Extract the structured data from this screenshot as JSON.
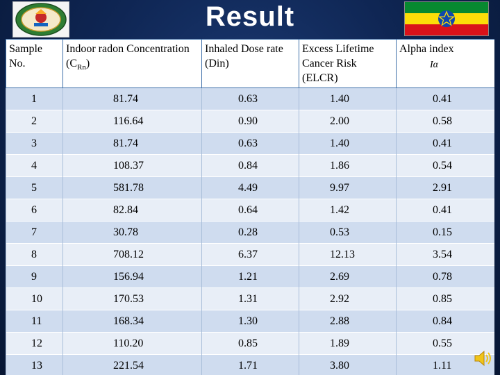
{
  "slide": {
    "title": "Result"
  },
  "table": {
    "headers": [
      {
        "line": "Sample No."
      },
      {
        "line": "Indoor radon Concentration (C",
        "sub": "Rn",
        "tail": ")"
      },
      {
        "line": "Inhaled Dose rate (Din)"
      },
      {
        "line": "Excess Lifetime Cancer Risk (ELCR)"
      },
      {
        "line": "Alpha index",
        "symbol": "Iα"
      }
    ],
    "rows": [
      [
        "1",
        "81.74",
        "0.63",
        "1.40",
        "0.41"
      ],
      [
        "2",
        "116.64",
        "0.90",
        "2.00",
        "0.58"
      ],
      [
        "3",
        "81.74",
        "0.63",
        "1.40",
        "0.41"
      ],
      [
        "4",
        "108.37",
        "0.84",
        "1.86",
        "0.54"
      ],
      [
        "5",
        "581.78",
        "4.49",
        "9.97",
        "2.91"
      ],
      [
        "6",
        "82.84",
        "0.64",
        "1.42",
        "0.41"
      ],
      [
        "7",
        "30.78",
        "0.28",
        "0.53",
        "0.15"
      ],
      [
        "8",
        "708.12",
        "6.37",
        "12.13",
        "3.54"
      ],
      [
        "9",
        "156.94",
        "1.21",
        "2.69",
        "0.78"
      ],
      [
        "10",
        "170.53",
        "1.31",
        "2.92",
        "0.85"
      ],
      [
        "11",
        "168.34",
        "1.30",
        "2.88",
        "0.84"
      ],
      [
        "12",
        "110.20",
        "0.85",
        "1.89",
        "0.55"
      ],
      [
        "13",
        "221.54",
        "1.71",
        "3.80",
        "1.11"
      ]
    ]
  },
  "colors": {
    "background": "#0f2654",
    "header_row": "#ffffff",
    "row_odd": "#cfdcef",
    "row_even": "#e8eef7",
    "flag_green": "#078930",
    "flag_yellow": "#fcdd09",
    "flag_red": "#da121a",
    "flag_emblem": "#0f47af"
  },
  "icons": {
    "logo": "university-seal-logo",
    "flag": "ethiopia-flag-icon",
    "audio": "speaker-icon"
  }
}
